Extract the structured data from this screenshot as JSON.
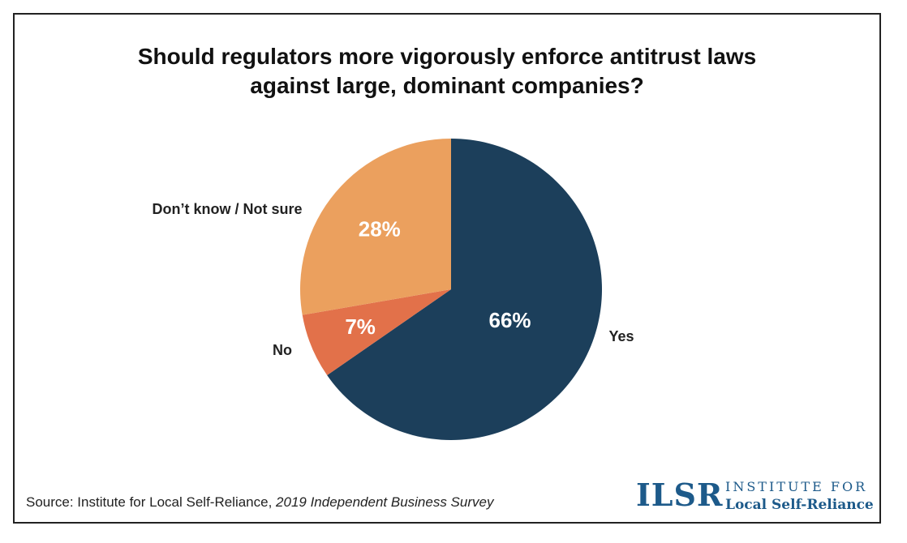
{
  "chart_data": {
    "type": "pie",
    "title_lines": [
      "Should regulators more vigorously enforce antitrust laws",
      "against large, dominant companies?"
    ],
    "slices": [
      {
        "name": "Yes",
        "value": 66,
        "label": "66%",
        "color": "#1c3f5b"
      },
      {
        "name": "No",
        "value": 7,
        "label": "7%",
        "color": "#e2714a"
      },
      {
        "name": "Don’t know / Not sure",
        "value": 28,
        "label": "28%",
        "color": "#eba05e"
      }
    ]
  },
  "source": {
    "prefix": "Source: Institute for Local Self-Reliance, ",
    "title": "2019 Independent Business Survey"
  },
  "logo": {
    "mark": "ILSR",
    "line1": "INSTITUTE FOR",
    "line2": "Local Self-Reliance"
  }
}
